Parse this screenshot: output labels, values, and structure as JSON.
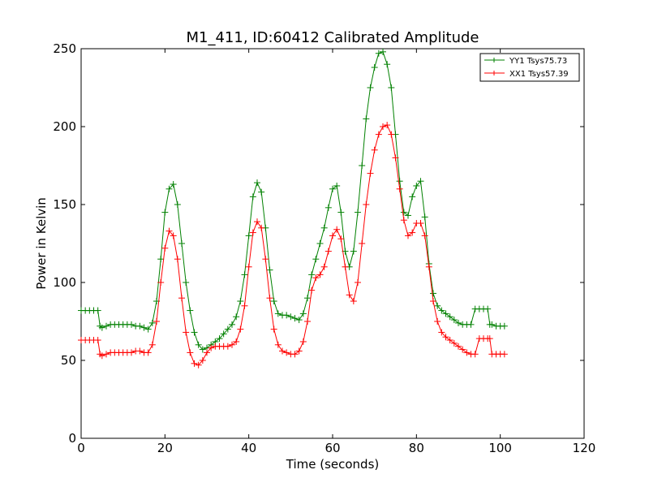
{
  "chart_data": {
    "type": "line",
    "title": "M1_411, ID:60412 Calibrated Amplitude",
    "xlabel": "Time (seconds)",
    "ylabel": "Power in Kelvin",
    "xlim": [
      0,
      120
    ],
    "ylim": [
      0,
      250
    ],
    "xticks": [
      "0",
      "20",
      "40",
      "60",
      "80",
      "100",
      "120"
    ],
    "yticks": [
      "0",
      "50",
      "100",
      "150",
      "200",
      "250"
    ],
    "grid": false,
    "legend_position": "top-right",
    "marker": "+",
    "series": [
      {
        "name": "YY1 Tsys75.73",
        "color": "#008000",
        "x": [
          0,
          1,
          2,
          3,
          4,
          4.5,
          5,
          6,
          7,
          8,
          9,
          10,
          11,
          12,
          13,
          14,
          15,
          16,
          17,
          18,
          19,
          20,
          21,
          22,
          23,
          24,
          25,
          26,
          27,
          28,
          29,
          30,
          31,
          32,
          33,
          34,
          35,
          36,
          37,
          38,
          39,
          40,
          41,
          42,
          43,
          44,
          45,
          46,
          47,
          48,
          49,
          50,
          51,
          52,
          53,
          54,
          55,
          56,
          57,
          58,
          59,
          60,
          61,
          62,
          63,
          64,
          65,
          66,
          67,
          68,
          69,
          70,
          71,
          72,
          73,
          74,
          75,
          76,
          77,
          78,
          79,
          80,
          81,
          82,
          83,
          84,
          85,
          86,
          87,
          88,
          89,
          90,
          91,
          92,
          93,
          94,
          95,
          96,
          97,
          97.5,
          98,
          99,
          100,
          101
        ],
        "y": [
          82,
          82,
          82,
          82,
          82,
          72,
          71,
          72,
          73,
          73,
          73,
          73,
          73,
          73,
          72,
          72,
          71,
          70,
          74,
          88,
          115,
          145,
          160,
          163,
          150,
          125,
          100,
          82,
          68,
          60,
          57,
          58,
          60,
          62,
          64,
          67,
          70,
          73,
          78,
          88,
          105,
          130,
          155,
          164,
          158,
          135,
          108,
          88,
          80,
          79,
          79,
          78,
          77,
          76,
          80,
          90,
          105,
          115,
          125,
          135,
          148,
          160,
          162,
          145,
          120,
          110,
          120,
          145,
          175,
          205,
          225,
          238,
          247,
          248,
          240,
          225,
          195,
          165,
          145,
          143,
          155,
          162,
          165,
          142,
          112,
          93,
          85,
          82,
          80,
          78,
          76,
          74,
          73,
          73,
          73,
          83,
          83,
          83,
          83,
          73,
          73,
          72,
          72,
          72
        ]
      },
      {
        "name": "XX1 Tsys57.39",
        "color": "#ff0000",
        "x": [
          0,
          1,
          2,
          3,
          4,
          4.5,
          5,
          6,
          7,
          8,
          9,
          10,
          11,
          12,
          13,
          14,
          15,
          16,
          17,
          18,
          19,
          20,
          21,
          22,
          23,
          24,
          25,
          26,
          27,
          28,
          29,
          30,
          31,
          32,
          33,
          34,
          35,
          36,
          37,
          38,
          39,
          40,
          41,
          42,
          43,
          44,
          45,
          46,
          47,
          48,
          49,
          50,
          51,
          52,
          53,
          54,
          55,
          56,
          57,
          58,
          59,
          60,
          61,
          62,
          63,
          64,
          65,
          66,
          67,
          68,
          69,
          70,
          71,
          72,
          73,
          74,
          75,
          76,
          77,
          78,
          79,
          80,
          81,
          82,
          83,
          84,
          85,
          86,
          87,
          88,
          89,
          90,
          91,
          92,
          93,
          94,
          95,
          96,
          97,
          97.5,
          98,
          99,
          100,
          101
        ],
        "y": [
          63,
          63,
          63,
          63,
          63,
          54,
          53,
          54,
          55,
          55,
          55,
          55,
          55,
          55,
          56,
          56,
          55,
          55,
          60,
          75,
          100,
          122,
          133,
          130,
          115,
          90,
          68,
          55,
          48,
          47,
          50,
          55,
          58,
          59,
          59,
          59,
          59,
          60,
          62,
          70,
          85,
          110,
          132,
          139,
          135,
          115,
          90,
          70,
          60,
          56,
          55,
          54,
          54,
          56,
          62,
          75,
          95,
          103,
          105,
          110,
          120,
          130,
          134,
          128,
          110,
          92,
          88,
          100,
          125,
          150,
          170,
          185,
          195,
          200,
          201,
          195,
          180,
          160,
          140,
          130,
          132,
          138,
          138,
          130,
          110,
          88,
          75,
          68,
          65,
          63,
          61,
          59,
          57,
          55,
          54,
          54,
          64,
          64,
          64,
          64,
          54,
          54,
          54,
          54
        ]
      }
    ]
  }
}
